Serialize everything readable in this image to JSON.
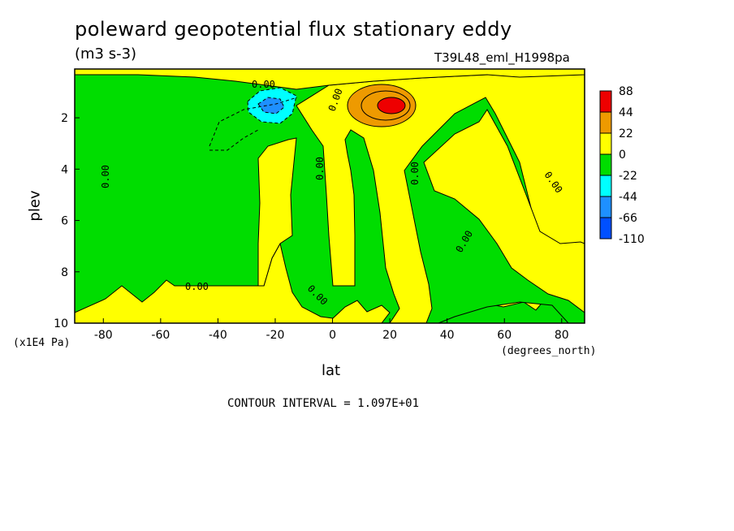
{
  "chart_data": {
    "type": "heatmap",
    "title": "poleward geopotential flux stationary eddy",
    "units": "(m3 s-3)",
    "run_label": "T39L48_eml_H1998pa",
    "xlabel": "lat",
    "x_units": "(degrees_north)",
    "ylabel": "plev",
    "y_units": "(x1E4 Pa)",
    "xlim": [
      -90,
      88
    ],
    "ylim": [
      10,
      0.1
    ],
    "x_ticks": [
      "-80",
      "-60",
      "-40",
      "-20",
      "0",
      "20",
      "40",
      "60",
      "80"
    ],
    "x_tick_values": [
      -80,
      -60,
      -40,
      -20,
      0,
      20,
      40,
      60,
      80
    ],
    "y_ticks": [
      "2",
      "4",
      "6",
      "8",
      "10"
    ],
    "y_tick_values": [
      2,
      4,
      6,
      8,
      10
    ],
    "contour_interval_text": "CONTOUR INTERVAL = 1.097E+01",
    "contour_labels": [
      "0.00",
      "0.00",
      "0.00",
      "0.00",
      "0.00",
      "0.00",
      "0.00",
      "0.00",
      "0.00"
    ],
    "legend": {
      "levels": [
        "88",
        "44",
        "22",
        "0",
        "-22",
        "-44",
        "-66",
        "-110"
      ],
      "colors": [
        "#ee0000",
        "#ee9a00",
        "#ffff00",
        "#00dd00",
        "#00ffff",
        "#1e90ff",
        "#0050ff"
      ]
    },
    "colors": {
      "positive_low": "#ffff00",
      "negative_low": "#00dd00",
      "max_positive": "#ee0000",
      "mid_positive": "#ee9a00",
      "negative_mid": "#00ffff",
      "negative_high": "#1e90ff"
    },
    "features": [
      {
        "label": "positive maximum",
        "lat": 21,
        "plev": 1.5,
        "value": 88
      },
      {
        "label": "negative minimum",
        "lat": -21,
        "plev": 1.5,
        "value": -66
      }
    ]
  }
}
